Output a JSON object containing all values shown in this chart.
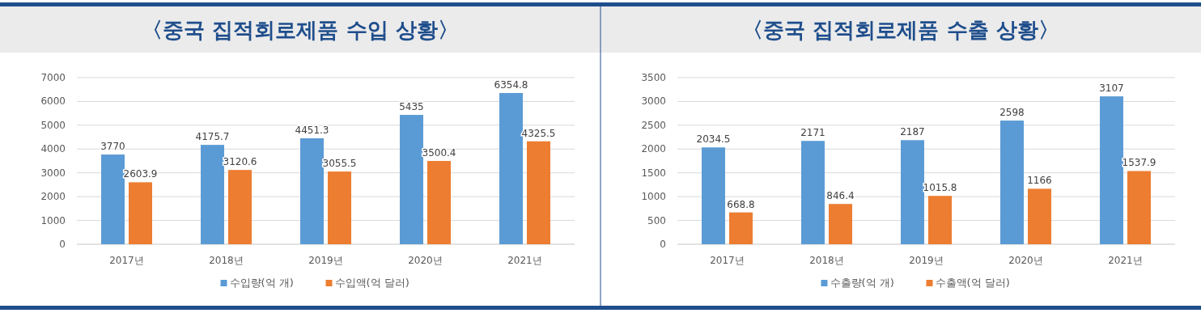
{
  "chart_data": [
    {
      "type": "bar",
      "title": "〈중국 집적회로제품 수입 상황〉",
      "categories": [
        "2017년",
        "2018년",
        "2019년",
        "2020년",
        "2021년"
      ],
      "series": [
        {
          "name": "수입량(억 개)",
          "color": "#5b9bd5",
          "values": [
            3770,
            4175.7,
            4451.3,
            5435,
            6354.8
          ]
        },
        {
          "name": "수입액(억 달러)",
          "color": "#ed7d31",
          "values": [
            2603.9,
            3120.6,
            3055.5,
            3500.4,
            4325.5
          ]
        }
      ],
      "ylim": [
        0,
        7000
      ],
      "yticks": [
        0,
        1000,
        2000,
        3000,
        4000,
        5000,
        6000,
        7000
      ],
      "grid": "y",
      "legend": "bottom",
      "data_labels": true
    },
    {
      "type": "bar",
      "title": "〈중국 집적회로제품 수출 상황〉",
      "categories": [
        "2017년",
        "2018년",
        "2019년",
        "2020년",
        "2021년"
      ],
      "series": [
        {
          "name": "수출량(억 개)",
          "color": "#5b9bd5",
          "values": [
            2034.5,
            2171,
            2187,
            2598,
            3107
          ]
        },
        {
          "name": "수출액(억 달러)",
          "color": "#ed7d31",
          "values": [
            668.8,
            846.4,
            1015.8,
            1166,
            1537.9
          ]
        }
      ],
      "ylim": [
        0,
        3500
      ],
      "yticks": [
        0,
        500,
        1000,
        1500,
        2000,
        2500,
        3000,
        3500
      ],
      "grid": "y",
      "legend": "bottom",
      "data_labels": true
    }
  ]
}
